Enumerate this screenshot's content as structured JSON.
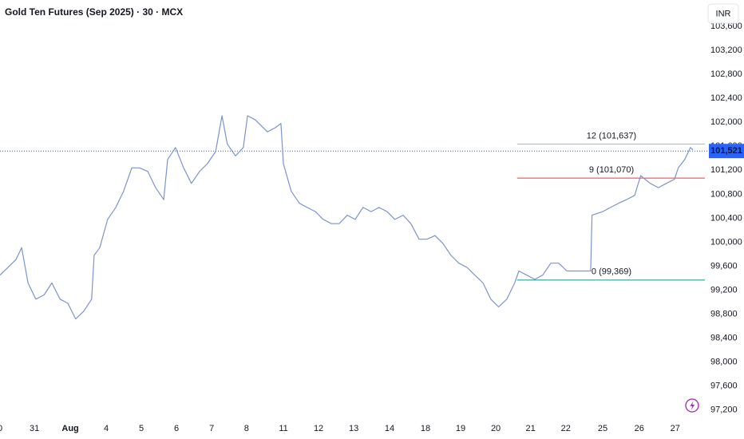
{
  "chart_data": {
    "type": "line",
    "title": "Gold Ten Futures (Sep 2025) · 30 · MCX",
    "currency": "INR",
    "series": [
      {
        "color": "#7b93cf",
        "x": [
          0,
          0.45,
          0.61,
          0.79,
          1.01,
          1.24,
          1.46,
          1.69,
          1.91,
          2.13,
          2.36,
          2.58,
          2.65,
          2.81,
          3.03,
          3.26,
          3.48,
          3.71,
          3.93,
          4.16,
          4.38,
          4.61,
          4.72,
          4.94,
          5.17,
          5.39,
          5.62,
          5.84,
          6.07,
          6.25,
          6.4,
          6.63,
          6.85,
          6.97,
          7.19,
          7.53,
          7.75,
          7.91,
          7.98,
          8.2,
          8.43,
          8.65,
          8.88,
          9.1,
          9.33,
          9.55,
          9.78,
          10,
          10.22,
          10.45,
          10.67,
          10.9,
          11.12,
          11.35,
          11.57,
          11.8,
          12.02,
          12.25,
          12.47,
          12.7,
          12.92,
          13.15,
          13.37,
          13.6,
          13.82,
          14.04,
          14.27,
          14.49,
          14.61,
          14.83,
          15.06,
          15.28,
          15.51,
          15.73,
          15.96,
          16.18,
          16.4,
          16.63,
          16.67,
          16.97,
          17.19,
          17.42,
          17.64,
          17.87,
          18.04,
          18.31,
          18.54,
          18.76,
          18.99,
          19.1,
          19.28,
          19.44,
          19.51
        ],
        "values": [
          99450,
          99710,
          99910,
          99320,
          99050,
          99120,
          99320,
          99050,
          98980,
          98720,
          98850,
          99050,
          99780,
          99910,
          100380,
          100580,
          100850,
          101240,
          101240,
          101180,
          100910,
          100710,
          101380,
          101580,
          101240,
          100980,
          101180,
          101310,
          101510,
          102110,
          101640,
          101440,
          101580,
          102110,
          102040,
          101840,
          101910,
          101980,
          101310,
          100850,
          100650,
          100580,
          100510,
          100380,
          100310,
          100310,
          100450,
          100380,
          100580,
          100510,
          100580,
          100510,
          100380,
          100450,
          100310,
          100050,
          100050,
          100110,
          99980,
          99780,
          99650,
          99580,
          99450,
          99320,
          99050,
          98920,
          99050,
          99320,
          99520,
          99450,
          99380,
          99450,
          99650,
          99650,
          99520,
          99520,
          99520,
          99520,
          100450,
          100510,
          100580,
          100650,
          100710,
          100780,
          101110,
          100980,
          100910,
          100980,
          101050,
          101240,
          101380,
          101580,
          101540
        ]
      }
    ],
    "xlim": [
      0,
      19.78
    ],
    "ylim": [
      97050,
      104040
    ],
    "xticks": [
      {
        "value": 0,
        "label": "0"
      },
      {
        "value": 0.97,
        "label": "31"
      },
      {
        "value": 1.98,
        "label": "Aug"
      },
      {
        "value": 2.99,
        "label": "4"
      },
      {
        "value": 3.98,
        "label": "5"
      },
      {
        "value": 4.97,
        "label": "6"
      },
      {
        "value": 5.96,
        "label": "7"
      },
      {
        "value": 6.94,
        "label": "8"
      },
      {
        "value": 7.98,
        "label": "11"
      },
      {
        "value": 8.97,
        "label": "12"
      },
      {
        "value": 9.96,
        "label": "13"
      },
      {
        "value": 10.97,
        "label": "14"
      },
      {
        "value": 11.98,
        "label": "18"
      },
      {
        "value": 12.97,
        "label": "19"
      },
      {
        "value": 13.96,
        "label": "20"
      },
      {
        "value": 14.94,
        "label": "21"
      },
      {
        "value": 15.93,
        "label": "22"
      },
      {
        "value": 16.97,
        "label": "25"
      },
      {
        "value": 18,
        "label": "26"
      },
      {
        "value": 19.01,
        "label": "27"
      }
    ],
    "yticks": [
      {
        "value": 97200,
        "label": "97,200"
      },
      {
        "value": 97600,
        "label": "97,600"
      },
      {
        "value": 98000,
        "label": "98,000"
      },
      {
        "value": 98400,
        "label": "98,400"
      },
      {
        "value": 98800,
        "label": "98,800"
      },
      {
        "value": 99200,
        "label": "99,200"
      },
      {
        "value": 99600,
        "label": "99,600"
      },
      {
        "value": 100000,
        "label": "100,000"
      },
      {
        "value": 100400,
        "label": "100,400"
      },
      {
        "value": 100800,
        "label": "100,800"
      },
      {
        "value": 101200,
        "label": "101,200"
      },
      {
        "value": 101600,
        "label": "101,600"
      },
      {
        "value": 102000,
        "label": "102,000"
      },
      {
        "value": 102400,
        "label": "102,400"
      },
      {
        "value": 102800,
        "label": "102,800"
      },
      {
        "value": 103200,
        "label": "103,200"
      },
      {
        "value": 103600,
        "label": "103,600"
      }
    ],
    "grid": false,
    "last_price": {
      "value": 101521,
      "label": "101,521",
      "color": "#2962ff"
    },
    "levels": [
      {
        "label": "12 (101,637)",
        "value": 101637,
        "start": 14.56,
        "color": "#b2b5be"
      },
      {
        "label": "9 (101,070)",
        "value": 101070,
        "start": 14.56,
        "color": "#f23645"
      },
      {
        "label": "0 (99,369)",
        "value": 99369,
        "start": 14.56,
        "color": "#089981"
      }
    ]
  }
}
